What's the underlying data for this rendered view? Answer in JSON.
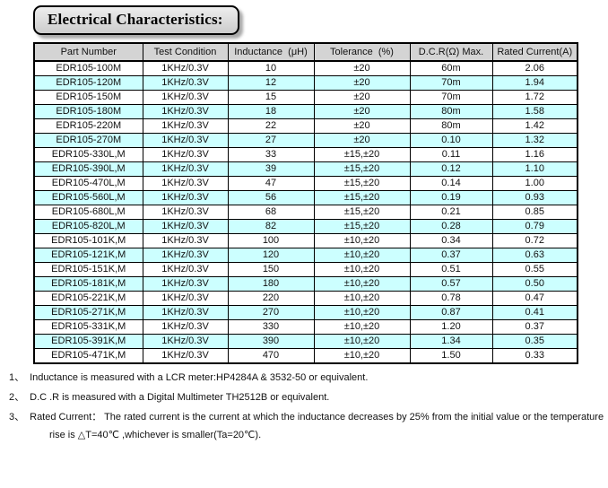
{
  "title": "Electrical Characteristics:",
  "table": {
    "headers": [
      "Part Number",
      "Test Condition",
      "Inductance  (μH)",
      "Tolerance  (%)",
      "D.C.R(Ω) Max.",
      "Rated Current(A)"
    ],
    "rows": [
      [
        "EDR105-100M",
        "1KHz/0.3V",
        "10",
        "±20",
        "60m",
        "2.06"
      ],
      [
        "EDR105-120M",
        "1KHz/0.3V",
        "12",
        "±20",
        "70m",
        "1.94"
      ],
      [
        "EDR105-150M",
        "1KHz/0.3V",
        "15",
        "±20",
        "70m",
        "1.72"
      ],
      [
        "EDR105-180M",
        "1KHz/0.3V",
        "18",
        "±20",
        "80m",
        "1.58"
      ],
      [
        "EDR105-220M",
        "1KHz/0.3V",
        "22",
        "±20",
        "80m",
        "1.42"
      ],
      [
        "EDR105-270M",
        "1KHz/0.3V",
        "27",
        "±20",
        "0.10",
        "1.32"
      ],
      [
        "EDR105-330L,M",
        "1KHz/0.3V",
        "33",
        "±15,±20",
        "0.11",
        "1.16"
      ],
      [
        "EDR105-390L,M",
        "1KHz/0.3V",
        "39",
        "±15,±20",
        "0.12",
        "1.10"
      ],
      [
        "EDR105-470L,M",
        "1KHz/0.3V",
        "47",
        "±15,±20",
        "0.14",
        "1.00"
      ],
      [
        "EDR105-560L,M",
        "1KHz/0.3V",
        "56",
        "±15,±20",
        "0.19",
        "0.93"
      ],
      [
        "EDR105-680L,M",
        "1KHz/0.3V",
        "68",
        "±15,±20",
        "0.21",
        "0.85"
      ],
      [
        "EDR105-820L,M",
        "1KHz/0.3V",
        "82",
        "±15,±20",
        "0.28",
        "0.79"
      ],
      [
        "EDR105-101K,M",
        "1KHz/0.3V",
        "100",
        "±10,±20",
        "0.34",
        "0.72"
      ],
      [
        "EDR105-121K,M",
        "1KHz/0.3V",
        "120",
        "±10,±20",
        "0.37",
        "0.63"
      ],
      [
        "EDR105-151K,M",
        "1KHz/0.3V",
        "150",
        "±10,±20",
        "0.51",
        "0.55"
      ],
      [
        "EDR105-181K,M",
        "1KHz/0.3V",
        "180",
        "±10,±20",
        "0.57",
        "0.50"
      ],
      [
        "EDR105-221K,M",
        "1KHz/0.3V",
        "220",
        "±10,±20",
        "0.78",
        "0.47"
      ],
      [
        "EDR105-271K,M",
        "1KHz/0.3V",
        "270",
        "±10,±20",
        "0.87",
        "0.41"
      ],
      [
        "EDR105-331K,M",
        "1KHz/0.3V",
        "330",
        "±10,±20",
        "1.20",
        "0.37"
      ],
      [
        "EDR105-391K,M",
        "1KHz/0.3V",
        "390",
        "±10,±20",
        "1.34",
        "0.35"
      ],
      [
        "EDR105-471K,M",
        "1KHz/0.3V",
        "470",
        "±10,±20",
        "1.50",
        "0.33"
      ]
    ]
  },
  "notes": [
    {
      "marker": "1、",
      "text": "Inductance is measured with a LCR meter:HP4284A & 3532-50 or equivalent."
    },
    {
      "marker": "2、",
      "text": "D.C .R is measured with a Digital Multimeter TH2512B or equivalent."
    },
    {
      "marker": "3、",
      "text": "Rated Current： The rated current is the current at which the inductance decreases by 25% from the initial value or the temperature",
      "continuation": "rise is △T=40℃ ,whichever is smaller(Ta=20℃)."
    }
  ],
  "colors": {
    "stripe": "#ccffff",
    "header_bg": "#d4d4d4",
    "title_box_bg": "#d9d9d9",
    "border": "#000000"
  }
}
